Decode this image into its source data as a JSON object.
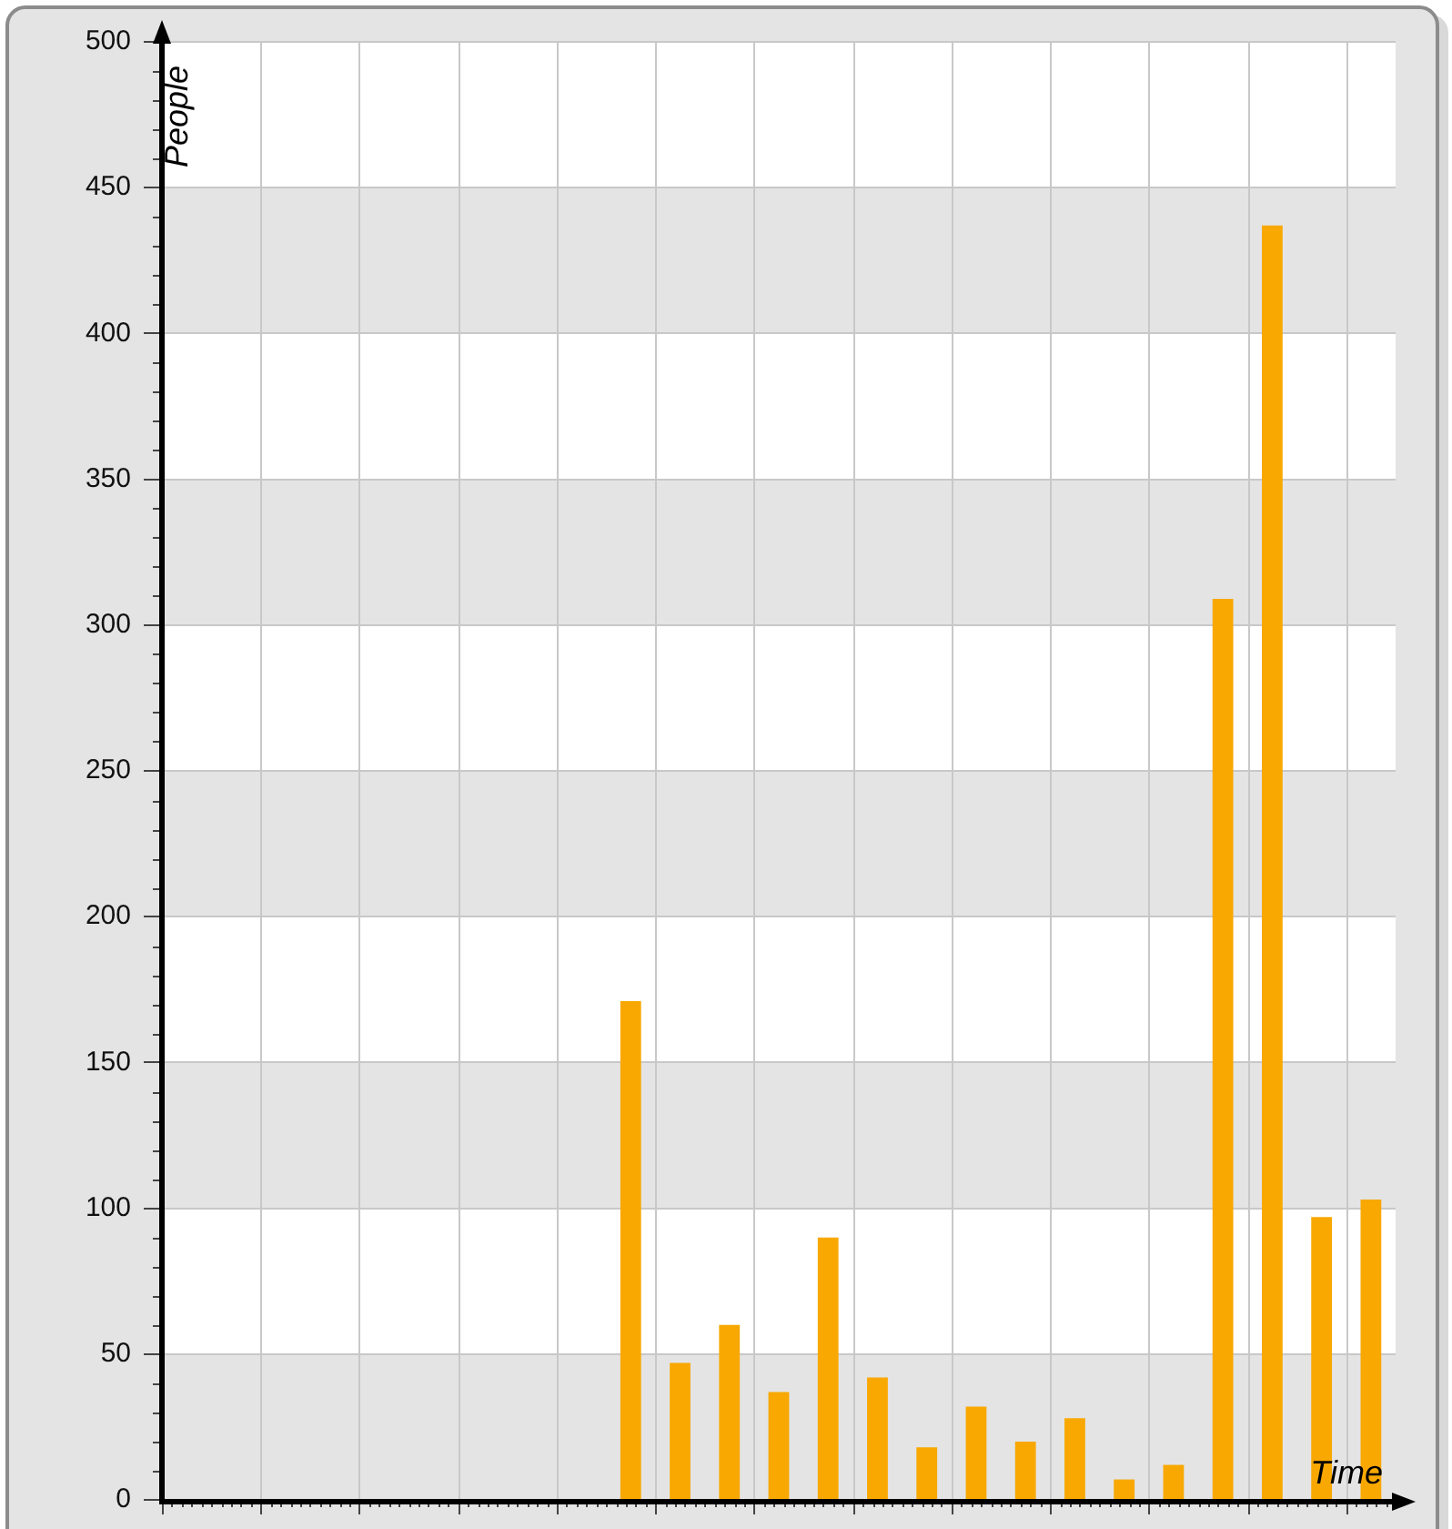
{
  "chart_data": {
    "type": "bar",
    "xlabel": "Time",
    "ylabel": "People",
    "categories": [
      null,
      null,
      null,
      null,
      null,
      null,
      null,
      null,
      null,
      null,
      null,
      null,
      null,
      null,
      null,
      null,
      null,
      null,
      null,
      null,
      null,
      null,
      null,
      null,
      null
    ],
    "values": [
      null,
      null,
      null,
      null,
      null,
      null,
      null,
      null,
      null,
      171,
      47,
      60,
      37,
      90,
      42,
      18,
      32,
      20,
      28,
      7,
      12,
      309,
      437,
      97,
      103
    ],
    "color": "#f8a800",
    "ylim": [
      0,
      500
    ],
    "yticks": [
      0,
      50,
      100,
      150,
      200,
      250,
      300,
      350,
      400,
      450,
      500
    ],
    "grid": true,
    "tick_labels": "y"
  }
}
